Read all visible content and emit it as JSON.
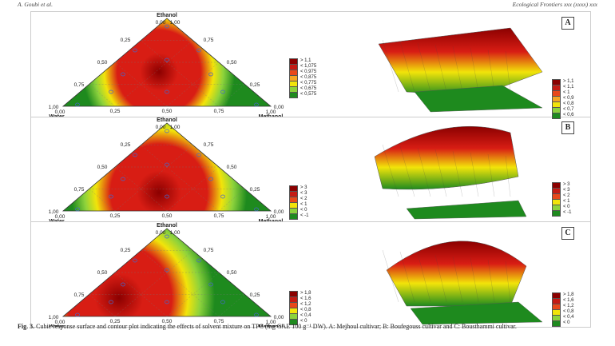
{
  "header": {
    "left": "A. Goubi et al.",
    "right": "Ecological Frontiers xxx (xxxx) xxx"
  },
  "axes": {
    "top": "Ethanol",
    "left": "Water",
    "right": "Methanol",
    "top_tick": "0,00",
    "top_tick2": "1,00",
    "ticks": [
      "0,25",
      "0,50",
      "0,75"
    ],
    "corner_left": "1,00",
    "corner_left2": "0,00",
    "corner_right": "0,00",
    "corner_right2": "1,00"
  },
  "panels": [
    {
      "letter": "A",
      "colors": {
        "outer": "#1e8a1e",
        "mid": "#f2e40a",
        "inner": "#d81d14",
        "core": "#8b0000"
      },
      "legend": [
        "> 1,1",
        "< 1,075",
        "< 0,975",
        "< 0,875",
        "< 0,775",
        "< 0,675",
        "< 0,575"
      ],
      "legend3d": [
        "> 1,1",
        "< 1,1",
        "< 1",
        "< 0,9",
        "< 0,8",
        "< 0,7",
        "< 0,6"
      ]
    },
    {
      "letter": "B",
      "colors": {
        "outer": "#1e8a1e",
        "mid": "#f2e40a",
        "inner": "#d81d14",
        "core": "#8b0000"
      },
      "legend": [
        "> 3",
        "< 3",
        "< 2",
        "< 1",
        "< 0",
        "< -1"
      ],
      "legend3d": [
        "> 3",
        "< 3",
        "< 2",
        "< 1",
        "< 0",
        "< -1"
      ]
    },
    {
      "letter": "C",
      "colors": {
        "outer": "#1e8a1e",
        "mid": "#f2e40a",
        "inner": "#d81d14",
        "core": "#8b0000"
      },
      "legend": [
        "> 1,8",
        "< 1,6",
        "< 1,2",
        "< 0,8",
        "< 0,4",
        "< 0"
      ],
      "legend3d": [
        "> 1,8",
        "< 1,6",
        "< 1,2",
        "< 0,8",
        "< 0,4",
        "< 0"
      ]
    }
  ],
  "caption": {
    "bold": "Fig. 3.",
    "text": " Cubic response surface and contour plot indicating the effects of solvent mixture on TPC (mg GAE 100 g⁻¹ DW). A: Mejhoul cultivar; B: Boufegouss cultivar and C: Bousthammi cultivar."
  }
}
